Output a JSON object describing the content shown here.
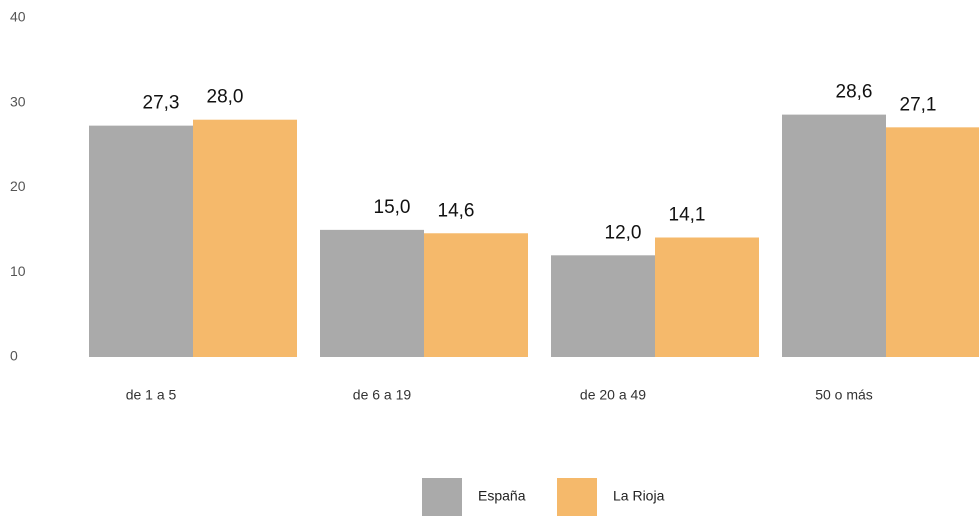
{
  "chart_data": {
    "type": "bar",
    "categories": [
      "de 1 a 5",
      "de 6 a 19",
      "de 20 a 49",
      "50 o más"
    ],
    "series": [
      {
        "name": "España",
        "color": "#aaaaaa",
        "values": [
          27.3,
          15.0,
          12.0,
          28.6
        ],
        "value_labels": [
          "27,3",
          "15,0",
          "12,0",
          "28,6"
        ]
      },
      {
        "name": "La Rioja",
        "color": "#f5b96b",
        "values": [
          28.0,
          14.6,
          14.1,
          27.1
        ],
        "value_labels": [
          "28,0",
          "14,6",
          "14,1",
          "27,1"
        ]
      }
    ],
    "ylim": [
      0,
      40
    ],
    "yticks": [
      0,
      10,
      20,
      30,
      40
    ],
    "grid": false,
    "legend": "bottom"
  }
}
